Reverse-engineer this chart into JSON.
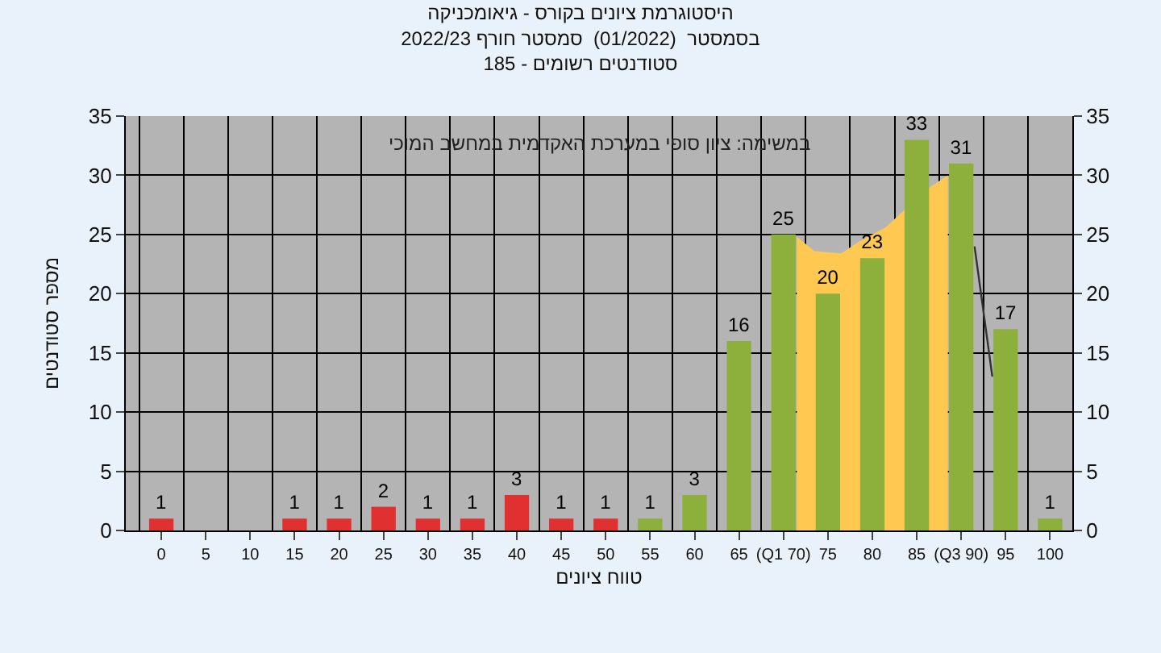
{
  "chart_data": {
    "type": "bar",
    "title": "היסטוגרמת ציונים בקורס - גיאומכניקה\nבסמסטר  (01/2022)  סמסטר חורף 2022/23\nסטודנטים רשומים - 185",
    "xlabel": "טווח ציונים",
    "ylabel": "מספר סטודנטים",
    "annotations": [
      "במשימה: ציון סופי במערכת האקדמית במחשב המוכי"
    ],
    "x": [
      0,
      5,
      10,
      15,
      20,
      25,
      30,
      35,
      40,
      45,
      50,
      55,
      60,
      65,
      70,
      75,
      80,
      85,
      90,
      95,
      100
    ],
    "xlim": [
      -4,
      102.5
    ],
    "xticks": [
      0,
      5,
      10,
      15,
      20,
      25,
      30,
      35,
      40,
      45,
      50,
      55,
      60,
      65,
      {
        "value": 70,
        "label": "(Q1 70)"
      },
      75,
      80,
      85,
      {
        "value": 90,
        "label": "(Q3 90)"
      },
      95,
      100
    ],
    "series": [
      {
        "type": "area",
        "color": "#ffc850",
        "x": [
          71.5,
          73.5,
          76.5,
          78.5,
          81.5,
          83.5,
          86.5,
          88.5
        ],
        "values": [
          24.8,
          23.6,
          23.4,
          24.4,
          25.6,
          27,
          29,
          30
        ]
      },
      {
        "type": "line",
        "color": "#333333",
        "x": [
          91.5,
          93.5
        ],
        "values": [
          24,
          13
        ]
      },
      {
        "values": [
          1,
          0,
          0,
          1,
          1,
          2,
          1,
          1,
          3,
          1,
          1,
          1,
          3,
          16,
          25,
          20,
          23,
          33,
          31,
          17,
          1
        ],
        "colors": [
          "#e03030",
          "#e03030",
          "#e03030",
          "#e03030",
          "#e03030",
          "#e03030",
          "#e03030",
          "#e03030",
          "#e03030",
          "#e03030",
          "#e03030",
          "#8db03c",
          "#8db03c",
          "#8db03c",
          "#8db03c",
          "#8db03c",
          "#8db03c",
          "#8db03c",
          "#8db03c",
          "#8db03c",
          "#8db03c"
        ],
        "value_labels": [
          "1",
          null,
          null,
          "1",
          "1",
          "2",
          "1",
          "1",
          "3",
          "1",
          "1",
          "1",
          "3",
          "16",
          "25",
          "20",
          "23",
          "33",
          "31",
          "17",
          "1"
        ]
      }
    ],
    "ylim": [
      0,
      35
    ],
    "yticks": [
      0,
      5,
      10,
      15,
      20,
      25,
      30,
      35
    ],
    "y2lim": [
      0,
      35
    ],
    "y2ticks": [
      0,
      5,
      10,
      15,
      20,
      25,
      30,
      35
    ],
    "grid": true,
    "legend": false
  }
}
